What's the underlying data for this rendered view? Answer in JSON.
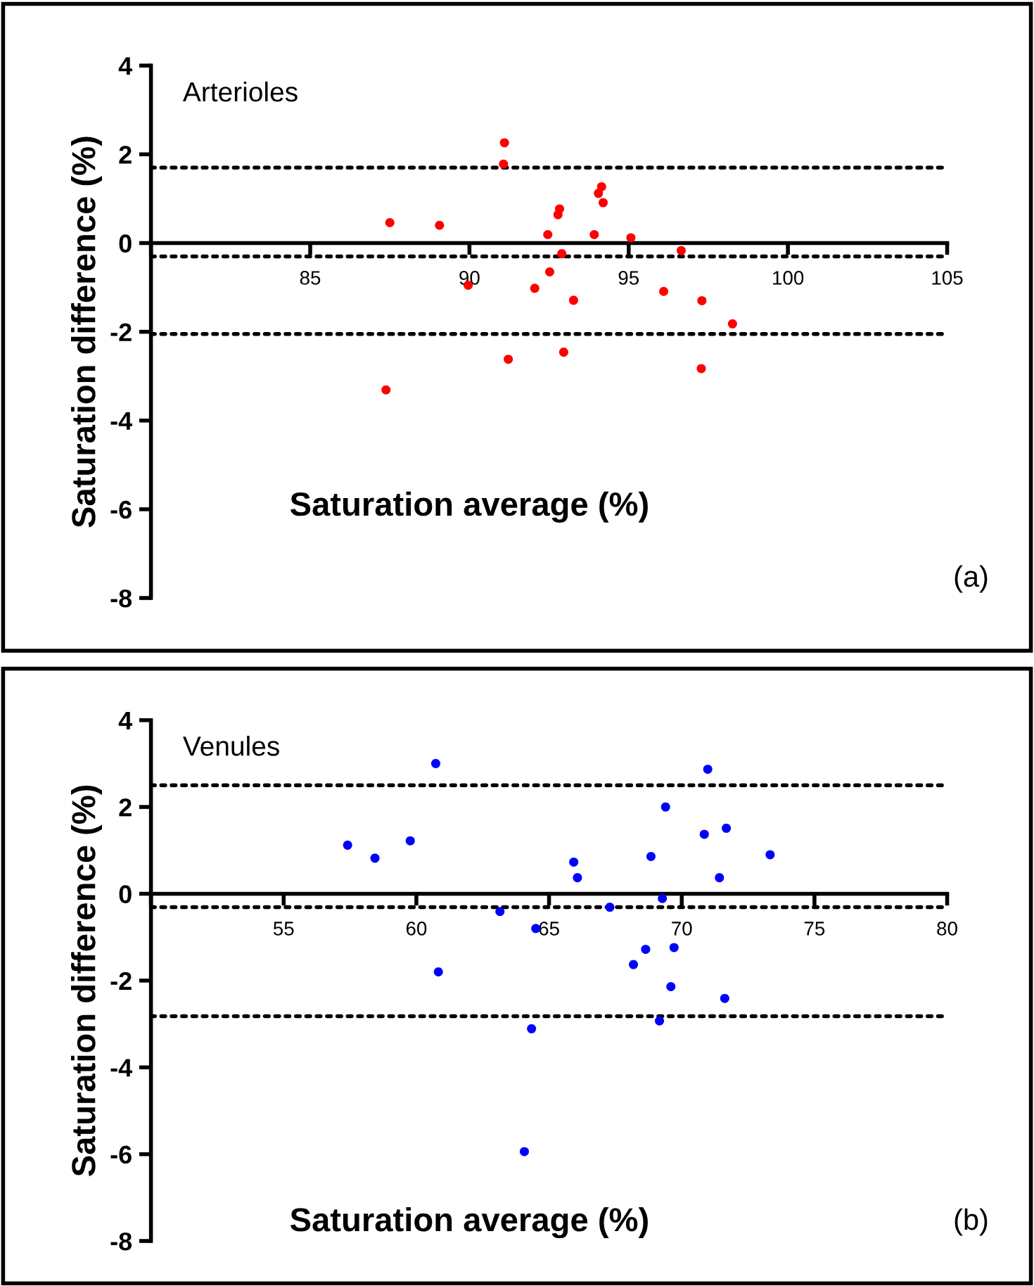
{
  "chart_data": [
    {
      "type": "scatter",
      "title": "Arterioles",
      "xlabel": "Saturation average (%)",
      "ylabel": "Saturation difference (%)",
      "annotations": [
        "(a)"
      ],
      "xlim": [
        80,
        105
      ],
      "xticks": [
        {
          "value": 80,
          "label": null
        },
        85,
        90,
        95,
        100,
        105
      ],
      "ylim": [
        -8,
        4
      ],
      "yticks": [
        -8,
        -6,
        -4,
        -2,
        0,
        2,
        4
      ],
      "grid": false,
      "legend": false,
      "marker": "circle",
      "series": [
        {
          "color": "#ff0000",
          "x": [
            91.1,
            91.07,
            94.15,
            94.05,
            94.2,
            92.83,
            92.78,
            87.5,
            89.06,
            92.46,
            93.92,
            95.07,
            96.65,
            92.9,
            92.52,
            89.96,
            92.05,
            93.27,
            96.1,
            97.3,
            98.26,
            92.96,
            91.22,
            97.28,
            87.38
          ],
          "values": [
            2.26,
            1.78,
            1.27,
            1.12,
            0.91,
            0.77,
            0.64,
            0.46,
            0.4,
            0.19,
            0.19,
            0.12,
            -0.17,
            -0.24,
            -0.65,
            -0.95,
            -1.02,
            -1.29,
            -1.09,
            -1.3,
            -1.82,
            -2.46,
            -2.62,
            -2.83,
            -3.31
          ]
        }
      ],
      "ref_lines": [
        {
          "axis": "y",
          "value": 1.7,
          "line_style": "dotted",
          "color": "#000000"
        },
        {
          "axis": "y",
          "value": -0.3,
          "line_style": "dotted",
          "color": "#000000"
        },
        {
          "axis": "y",
          "value": -2.05,
          "line_style": "dotted",
          "color": "#000000"
        }
      ]
    },
    {
      "type": "scatter",
      "title": "Venules",
      "xlabel": "Saturation average (%)",
      "ylabel": "Saturation difference (%)",
      "annotations": [
        "(b)"
      ],
      "xlim": [
        50,
        80
      ],
      "xticks": [
        {
          "value": 50,
          "label": null
        },
        55,
        60,
        65,
        70,
        75,
        80
      ],
      "ylim": [
        -8,
        4
      ],
      "yticks": [
        -8,
        -6,
        -4,
        -2,
        0,
        2,
        4
      ],
      "grid": false,
      "legend": false,
      "marker": "circle",
      "series": [
        {
          "color": "#0000ff",
          "x": [
            60.73,
            70.98,
            69.39,
            70.85,
            71.68,
            57.41,
            59.77,
            58.44,
            73.33,
            68.84,
            65.93,
            66.07,
            71.42,
            69.27,
            67.29,
            63.15,
            64.5,
            68.64,
            69.71,
            68.18,
            60.83,
            69.59,
            71.62,
            69.16,
            64.34,
            64.07
          ],
          "values": [
            3.0,
            2.87,
            2.0,
            1.37,
            1.51,
            1.12,
            1.22,
            0.82,
            0.9,
            0.86,
            0.73,
            0.37,
            0.37,
            -0.11,
            -0.31,
            -0.41,
            -0.8,
            -1.28,
            -1.24,
            -1.63,
            -1.8,
            -2.14,
            -2.41,
            -2.93,
            -3.11,
            -5.94
          ]
        }
      ],
      "ref_lines": [
        {
          "axis": "y",
          "value": 2.5,
          "line_style": "dotted",
          "color": "#000000"
        },
        {
          "axis": "y",
          "value": -0.31,
          "line_style": "dotted",
          "color": "#000000"
        },
        {
          "axis": "y",
          "value": -2.82,
          "line_style": "dotted",
          "color": "#000000"
        }
      ]
    }
  ]
}
